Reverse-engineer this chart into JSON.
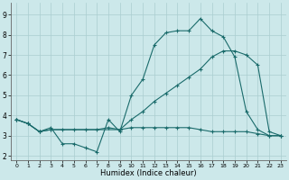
{
  "xlabel": "Humidex (Indice chaleur)",
  "bg_color": "#cce8ea",
  "grid_color": "#aacdd0",
  "line_color": "#1a6b6b",
  "xlim": [
    -0.5,
    23.5
  ],
  "ylim": [
    1.8,
    9.6
  ],
  "yticks": [
    2,
    3,
    4,
    5,
    6,
    7,
    8,
    9
  ],
  "xticks": [
    0,
    1,
    2,
    3,
    4,
    5,
    6,
    7,
    8,
    9,
    10,
    11,
    12,
    13,
    14,
    15,
    16,
    17,
    18,
    19,
    20,
    21,
    22,
    23
  ],
  "line1_x": [
    0,
    1,
    2,
    3,
    4,
    5,
    6,
    7,
    8,
    9,
    10,
    11,
    12,
    13,
    14,
    15,
    16,
    17,
    18,
    19,
    20,
    21,
    22,
    23
  ],
  "line1_y": [
    3.8,
    3.6,
    3.2,
    3.4,
    2.6,
    2.6,
    2.4,
    2.2,
    3.8,
    3.2,
    5.0,
    5.8,
    7.5,
    8.1,
    8.2,
    8.2,
    8.8,
    8.2,
    7.9,
    6.9,
    4.2,
    3.3,
    3.0,
    3.0
  ],
  "line2_x": [
    0,
    1,
    2,
    3,
    4,
    5,
    6,
    7,
    8,
    9,
    10,
    11,
    12,
    13,
    14,
    15,
    16,
    17,
    18,
    19,
    20,
    21,
    22,
    23
  ],
  "line2_y": [
    3.8,
    3.6,
    3.2,
    3.3,
    3.3,
    3.3,
    3.3,
    3.3,
    3.4,
    3.3,
    3.4,
    3.4,
    3.4,
    3.4,
    3.4,
    3.4,
    3.3,
    3.2,
    3.2,
    3.2,
    3.2,
    3.1,
    3.0,
    3.0
  ],
  "line3_x": [
    0,
    1,
    2,
    3,
    9,
    10,
    11,
    12,
    13,
    14,
    15,
    16,
    17,
    18,
    19,
    20,
    21,
    22,
    23
  ],
  "line3_y": [
    3.8,
    3.6,
    3.2,
    3.3,
    3.3,
    3.8,
    4.2,
    4.7,
    5.1,
    5.5,
    5.9,
    6.3,
    6.9,
    7.2,
    7.2,
    7.0,
    6.5,
    3.2,
    3.0
  ]
}
